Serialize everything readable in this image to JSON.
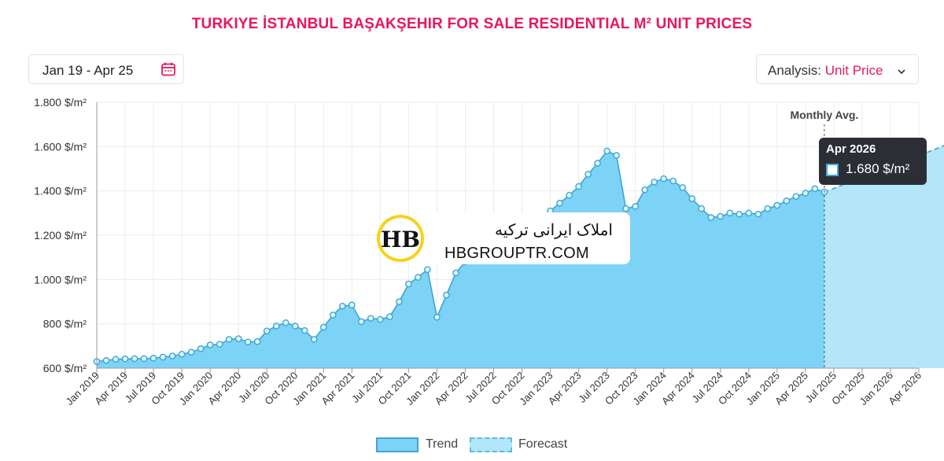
{
  "header": {
    "title": "TURKIYE İSTANBUL BAŞAKŞEHIR FOR SALE RESIDENTIAL M² UNIT PRICES"
  },
  "date_range": {
    "label": "Jan 19 - Apr 25",
    "icon": "calendar-icon"
  },
  "analysis": {
    "prefix": "Analysis: ",
    "value": "Unit Price",
    "icon": "chevron-down-icon"
  },
  "watermark": {
    "line1": "املاک ایرانی ترکیه",
    "line2": "HBGROUPTR.COM",
    "logo_text": "HB"
  },
  "annotation": {
    "monthly_avg": "Monthly Avg."
  },
  "tooltip": {
    "date": "Apr 2026",
    "value": "1.680 $/m²"
  },
  "legend": {
    "trend": "Trend",
    "forecast": "Forecast"
  },
  "colors": {
    "accent": "#e8175d",
    "trend_fill": "#7dd3f5",
    "trend_line": "#3aa6d4",
    "forecast_fill": "#b3e6f8",
    "tooltip_bg": "#2b2f35"
  },
  "chart_data": {
    "type": "area",
    "title": "TURKIYE İSTANBUL BAŞAKŞEHIR FOR SALE RESIDENTIAL M² UNIT PRICES",
    "ylim": [
      600,
      1800
    ],
    "yticks": [
      "600 $/m²",
      "800 $/m²",
      "1.000 $/m²",
      "1.200 $/m²",
      "1.400 $/m²",
      "1.600 $/m²",
      "1.800 $/m²"
    ],
    "ytick_values": [
      600,
      800,
      1000,
      1200,
      1400,
      1600,
      1800
    ],
    "xticks": [
      "Jan 2019",
      "Apr 2019",
      "Jul 2019",
      "Oct 2019",
      "Jan 2020",
      "Apr 2020",
      "Jul 2020",
      "Oct 2020",
      "Jan 2021",
      "Apr 2021",
      "Jul 2021",
      "Oct 2021",
      "Jan 2022",
      "Apr 2022",
      "Jul 2022",
      "Oct 2022",
      "Jan 2023",
      "Apr 2023",
      "Jul 2023",
      "Oct 2023",
      "Jan 2024",
      "Apr 2024",
      "Jul 2024",
      "Oct 2024",
      "Jan 2025",
      "Apr 2025",
      "Jul 2025",
      "Oct 2025",
      "Jan 2026",
      "Apr 2026"
    ],
    "x_start": "Jan 2019",
    "grid": true,
    "legend_position": "bottom",
    "series": [
      {
        "name": "Trend",
        "values": [
          630,
          635,
          640,
          642,
          643,
          643,
          645,
          650,
          655,
          663,
          672,
          688,
          705,
          708,
          730,
          733,
          718,
          720,
          768,
          790,
          805,
          790,
          770,
          730,
          785,
          840,
          880,
          885,
          810,
          825,
          820,
          832,
          900,
          980,
          1010,
          1045,
          830,
          930,
          1030,
          1080,
          1100,
          1130,
          1150,
          1170,
          1190,
          1210,
          1230,
          1260,
          1310,
          1345,
          1380,
          1420,
          1475,
          1525,
          1580,
          1560,
          1320,
          1330,
          1405,
          1440,
          1455,
          1445,
          1415,
          1365,
          1320,
          1280,
          1285,
          1300,
          1295,
          1300,
          1295,
          1320,
          1335,
          1355,
          1375,
          1390,
          1410,
          1395
        ]
      },
      {
        "name": "Forecast",
        "start_index": 77,
        "values": [
          1395,
          1411,
          1428,
          1444,
          1461,
          1477,
          1494,
          1510,
          1527,
          1543,
          1560,
          1576,
          1593,
          1610,
          1626,
          1643,
          1664,
          1680
        ]
      }
    ]
  }
}
